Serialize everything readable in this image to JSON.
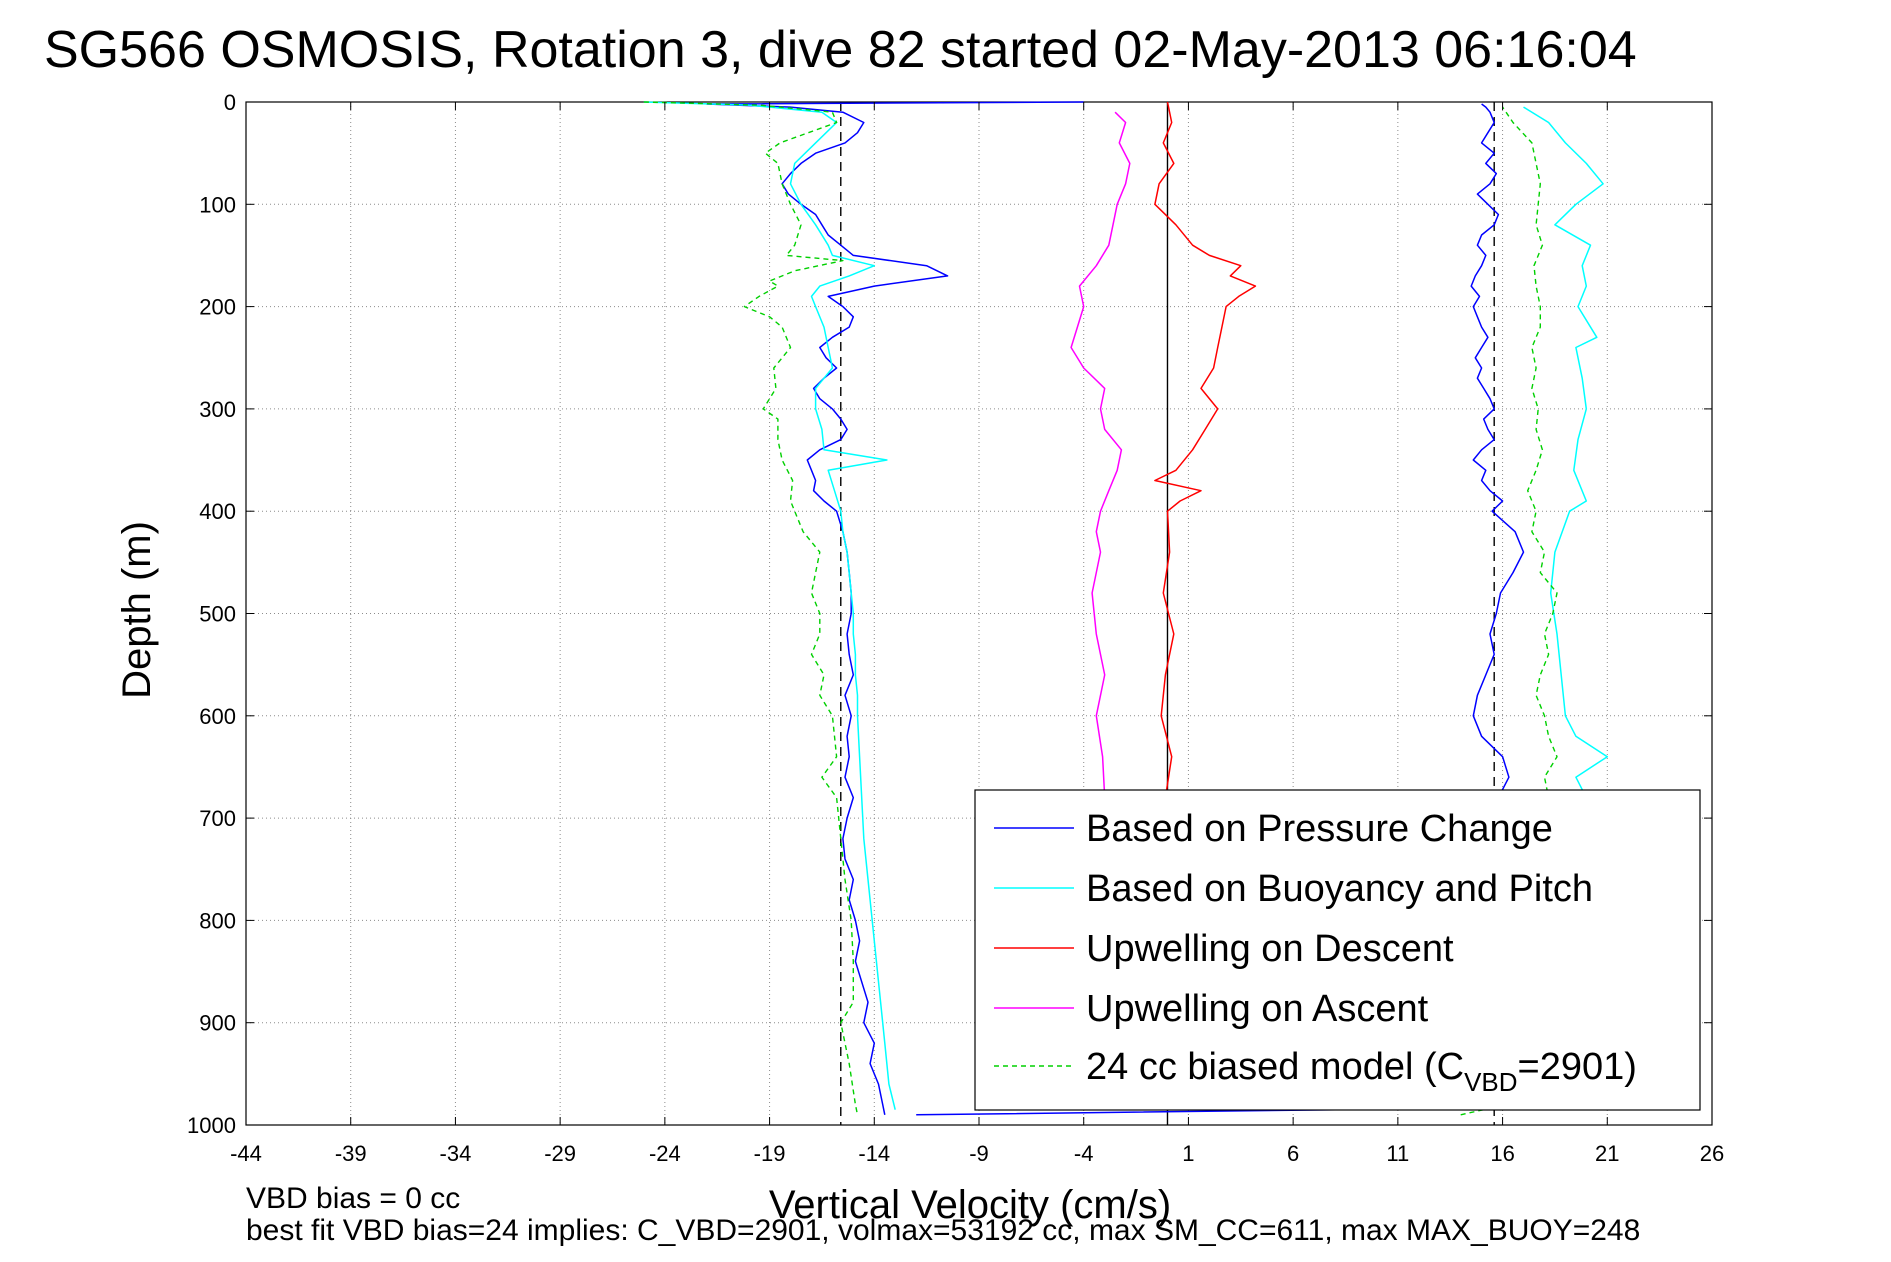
{
  "chart_data": {
    "type": "line",
    "title": "SG566 OSMOSIS, Rotation 3, dive 82 started 02-May-2013 06:16:04",
    "xlabel": "Vertical Velocity (cm/s)",
    "ylabel": "Depth (m)",
    "xlim": [
      -44,
      26
    ],
    "ylim": [
      0,
      1000
    ],
    "y_reversed": true,
    "grid": true,
    "xticks": [
      -44,
      -39,
      -34,
      -29,
      -24,
      -19,
      -14,
      -9,
      -4,
      1,
      6,
      11,
      16,
      21,
      26
    ],
    "yticks": [
      0,
      100,
      200,
      300,
      400,
      500,
      600,
      700,
      800,
      900,
      1000
    ],
    "reference_lines": [
      {
        "x": -15.6,
        "style": "dashed",
        "color": "#000000"
      },
      {
        "x": 0.0,
        "style": "solid",
        "color": "#000000"
      },
      {
        "x": 15.6,
        "style": "dashed",
        "color": "#000000"
      }
    ],
    "legend_position": "bottom-right",
    "series": [
      {
        "name": "Based on Pressure Change",
        "color": "#0000ff",
        "style": "solid",
        "segments": [
          {
            "depth": [
              0,
              2,
              5,
              10,
              20,
              30,
              40,
              50,
              60,
              70,
              80,
              90,
              100,
              110,
              120,
              130,
              140,
              150,
              160,
              170,
              180,
              190,
              200,
              210,
              220,
              230,
              240,
              250,
              260,
              270,
              280,
              290,
              300,
              310,
              320,
              330,
              340,
              350,
              360,
              370,
              380,
              390,
              400,
              420,
              440,
              460,
              480,
              500,
              520,
              540,
              560,
              580,
              600,
              620,
              640,
              660,
              680,
              700,
              720,
              740,
              760,
              780,
              800,
              820,
              840,
              860,
              880,
              900,
              920,
              940,
              960,
              980,
              990
            ],
            "velocity": [
              -4,
              -22,
              -18,
              -15.5,
              -14.5,
              -14.8,
              -15.4,
              -16.8,
              -17.5,
              -18.0,
              -18.4,
              -18.1,
              -17.5,
              -16.8,
              -16.5,
              -16.2,
              -15.6,
              -15.0,
              -11.5,
              -10.5,
              -14.0,
              -16.2,
              -15.5,
              -15.0,
              -15.2,
              -16.0,
              -16.6,
              -16.3,
              -15.8,
              -16.4,
              -16.9,
              -16.6,
              -16.0,
              -15.6,
              -15.3,
              -15.6,
              -16.6,
              -17.2,
              -17.0,
              -16.8,
              -16.9,
              -16.4,
              -15.8,
              -15.5,
              -15.3,
              -15.2,
              -15.1,
              -15.1,
              -15.3,
              -15.2,
              -15.0,
              -15.4,
              -15.1,
              -15.3,
              -15.2,
              -15.4,
              -15.0,
              -15.3,
              -15.5,
              -15.4,
              -15.0,
              -15.2,
              -14.9,
              -14.7,
              -14.9,
              -14.6,
              -14.3,
              -14.5,
              -14.0,
              -14.2,
              -13.8,
              -13.6,
              -13.5
            ]
          },
          {
            "depth": [
              990,
              985,
              980,
              970,
              960,
              940,
              920,
              900,
              880,
              860,
              840,
              820,
              800,
              780,
              760,
              740,
              720,
              700,
              680,
              660,
              640,
              620,
              600,
              580,
              560,
              540,
              520,
              500,
              480,
              460,
              440,
              420,
              400,
              390,
              380,
              370,
              360,
              350,
              340,
              330,
              320,
              310,
              300,
              290,
              280,
              270,
              260,
              250,
              240,
              230,
              220,
              210,
              200,
              190,
              180,
              170,
              160,
              150,
              140,
              130,
              120,
              110,
              100,
              90,
              80,
              70,
              60,
              50,
              40,
              30,
              20,
              10,
              5,
              2
            ],
            "velocity": [
              -12.0,
              8.0,
              16.0,
              16.3,
              16.0,
              15.9,
              15.8,
              16.0,
              15.8,
              15.9,
              15.7,
              15.5,
              15.6,
              15.4,
              15.6,
              15.5,
              15.4,
              15.3,
              15.8,
              16.3,
              16.0,
              15.0,
              14.6,
              14.8,
              15.2,
              15.6,
              15.4,
              15.7,
              15.9,
              16.5,
              17.0,
              16.6,
              15.5,
              16.0,
              15.4,
              15.0,
              15.2,
              14.6,
              15.0,
              15.6,
              15.3,
              15.1,
              15.6,
              15.4,
              15.1,
              14.8,
              15.0,
              14.7,
              15.0,
              15.3,
              15.0,
              14.8,
              14.6,
              14.9,
              14.5,
              14.7,
              15.0,
              15.2,
              14.8,
              15.0,
              15.6,
              15.8,
              15.3,
              14.8,
              15.4,
              15.7,
              15.2,
              15.6,
              15.0,
              15.3,
              15.6,
              15.4,
              15.2,
              15.0
            ]
          }
        ]
      },
      {
        "name": "Based on Buoyancy and Pitch",
        "color": "#00ffff",
        "style": "solid",
        "segments": [
          {
            "depth": [
              0,
              3,
              10,
              20,
              40,
              60,
              80,
              100,
              120,
              140,
              150,
              160,
              170,
              180,
              190,
              200,
              220,
              240,
              260,
              280,
              300,
              320,
              340,
              350,
              360,
              380,
              400,
              420,
              440,
              460,
              480,
              500,
              520,
              540,
              560,
              580,
              600,
              640,
              680,
              720,
              760,
              800,
              840,
              880,
              920,
              960,
              985
            ],
            "velocity": [
              -25,
              -20,
              -16.5,
              -15.8,
              -16.8,
              -17.8,
              -18.0,
              -17.5,
              -16.8,
              -16.2,
              -16.0,
              -14.0,
              -15.2,
              -16.6,
              -17.0,
              -16.8,
              -16.4,
              -16.2,
              -16.0,
              -16.8,
              -16.8,
              -16.5,
              -16.4,
              -13.4,
              -16.2,
              -15.9,
              -15.6,
              -15.5,
              -15.3,
              -15.2,
              -15.1,
              -15.0,
              -15.0,
              -14.9,
              -14.9,
              -14.8,
              -14.8,
              -14.7,
              -14.6,
              -14.5,
              -14.3,
              -14.1,
              -13.9,
              -13.7,
              -13.5,
              -13.3,
              -13.0
            ]
          },
          {
            "depth": [
              985,
              970,
              940,
              900,
              860,
              820,
              780,
              740,
              700,
              680,
              660,
              640,
              620,
              600,
              560,
              520,
              480,
              440,
              400,
              390,
              360,
              330,
              300,
              270,
              240,
              230,
              200,
              180,
              160,
              140,
              120,
              100,
              80,
              60,
              40,
              20,
              5
            ],
            "velocity": [
              14.0,
              16.5,
              16.2,
              16.0,
              16.3,
              16.5,
              16.8,
              17.0,
              17.5,
              20.0,
              19.5,
              21.0,
              19.5,
              19.0,
              18.8,
              18.6,
              18.3,
              18.5,
              19.2,
              20.0,
              19.4,
              19.6,
              20.0,
              19.8,
              19.5,
              20.5,
              19.6,
              20.0,
              19.8,
              20.2,
              18.5,
              19.5,
              20.8,
              20.0,
              19.0,
              18.2,
              17.0
            ]
          }
        ]
      },
      {
        "name": "Upwelling on Descent",
        "color": "#ff0000",
        "style": "solid",
        "depth": [
          0,
          20,
          40,
          60,
          80,
          100,
          120,
          140,
          150,
          160,
          170,
          180,
          190,
          200,
          220,
          240,
          260,
          280,
          300,
          320,
          340,
          360,
          370,
          380,
          390,
          400,
          440,
          480,
          520,
          560,
          600,
          640,
          680
        ],
        "velocity": [
          0.0,
          0.2,
          -0.2,
          0.3,
          -0.4,
          -0.6,
          0.4,
          1.2,
          2.0,
          3.5,
          3.0,
          4.2,
          3.4,
          2.8,
          2.6,
          2.4,
          2.2,
          1.6,
          2.4,
          1.8,
          1.2,
          0.4,
          -0.6,
          1.6,
          0.6,
          0.0,
          0.1,
          -0.2,
          0.3,
          -0.1,
          -0.3,
          0.2,
          -0.1
        ]
      },
      {
        "name": "Upwelling on Ascent",
        "color": "#ff00ff",
        "style": "solid",
        "depth": [
          10,
          20,
          40,
          60,
          80,
          100,
          120,
          140,
          160,
          180,
          200,
          220,
          240,
          260,
          280,
          300,
          320,
          340,
          360,
          380,
          400,
          420,
          440,
          480,
          520,
          560,
          600,
          640,
          680
        ],
        "velocity": [
          -2.5,
          -2.0,
          -2.3,
          -1.8,
          -2.0,
          -2.4,
          -2.6,
          -2.8,
          -3.4,
          -4.2,
          -4.0,
          -4.3,
          -4.6,
          -4.0,
          -3.0,
          -3.2,
          -3.0,
          -2.2,
          -2.4,
          -2.8,
          -3.2,
          -3.4,
          -3.2,
          -3.6,
          -3.4,
          -3.0,
          -3.4,
          -3.1,
          -3.0
        ]
      },
      {
        "name": "24 cc biased model (C_VBD=2901)",
        "color": "#00d000",
        "style": "dashed",
        "segments": [
          {
            "depth": [
              0,
              3,
              10,
              20,
              40,
              50,
              60,
              80,
              100,
              120,
              140,
              150,
              155,
              165,
              175,
              180,
              190,
              200,
              210,
              220,
              240,
              260,
              280,
              300,
              310,
              330,
              350,
              370,
              390,
              400,
              420,
              440,
              460,
              480,
              500,
              520,
              540,
              560,
              580,
              600,
              640,
              660,
              680,
              720,
              760,
              800,
              840,
              880,
              900,
              940,
              980,
              990
            ],
            "velocity": [
              -25,
              -19.5,
              -16.0,
              -15.8,
              -18.5,
              -19.2,
              -18.6,
              -18.4,
              -18.0,
              -17.5,
              -17.8,
              -18.2,
              -15.5,
              -17.8,
              -19.0,
              -18.6,
              -19.5,
              -20.2,
              -19.0,
              -18.4,
              -18.0,
              -18.8,
              -18.7,
              -19.3,
              -18.6,
              -18.6,
              -18.4,
              -17.9,
              -18.0,
              -17.8,
              -17.4,
              -16.6,
              -16.8,
              -17.0,
              -16.6,
              -16.6,
              -17.0,
              -16.4,
              -16.6,
              -16.0,
              -15.8,
              -16.5,
              -15.8,
              -15.6,
              -15.4,
              -15.1,
              -15.0,
              -15.0,
              -15.6,
              -15.2,
              -14.9,
              -14.8
            ]
          },
          {
            "depth": [
              990,
              980,
              960,
              940,
              920,
              900,
              880,
              860,
              840,
              820,
              800,
              760,
              720,
              700,
              680,
              660,
              640,
              620,
              600,
              580,
              560,
              540,
              520,
              500,
              480,
              460,
              440,
              420,
              400,
              380,
              360,
              340,
              320,
              300,
              280,
              260,
              240,
              220,
              200,
              180,
              160,
              140,
              120,
              100,
              80,
              60,
              40,
              20,
              5
            ],
            "velocity": [
              14.0,
              16.2,
              16.0,
              16.3,
              16.1,
              16.4,
              16.3,
              16.5,
              16.6,
              16.8,
              17.0,
              17.2,
              17.4,
              17.5,
              18.2,
              18.0,
              18.6,
              18.2,
              18.0,
              17.6,
              17.8,
              18.2,
              18.0,
              18.4,
              18.6,
              17.8,
              18.0,
              17.4,
              17.6,
              17.2,
              17.6,
              17.9,
              17.6,
              17.7,
              17.4,
              17.6,
              17.4,
              17.8,
              17.8,
              17.6,
              17.5,
              17.9,
              17.6,
              17.7,
              17.8,
              17.6,
              17.4,
              16.5,
              16.0
            ]
          }
        ]
      }
    ]
  },
  "footer": {
    "line1": "VBD bias = 0 cc",
    "line2": "best fit VBD bias=24 implies: C_VBD=2901, volmax=53192 cc, max SM_CC=611, max MAX_BUOY=248"
  }
}
